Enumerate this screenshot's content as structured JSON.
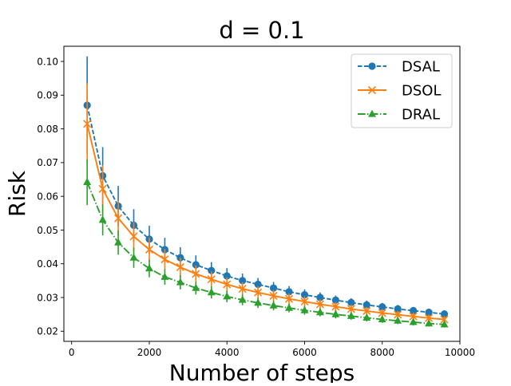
{
  "chart_data": {
    "type": "line",
    "title": "d = 0.1",
    "xlabel": "Number of steps",
    "ylabel": "Risk",
    "xlim": [
      -200,
      10000
    ],
    "ylim": [
      0.017,
      0.1045
    ],
    "xticks": [
      0,
      2000,
      4000,
      6000,
      8000,
      10000
    ],
    "xtick_labels": [
      "0",
      "2000",
      "4000",
      "6000",
      "8000",
      "10000"
    ],
    "yticks": [
      0.02,
      0.03,
      0.04,
      0.05,
      0.06,
      0.07,
      0.08,
      0.09,
      0.1
    ],
    "ytick_labels": [
      "0.02",
      "0.03",
      "0.04",
      "0.05",
      "0.06",
      "0.07",
      "0.08",
      "0.09",
      "0.10"
    ],
    "grid": false,
    "legend_position": "top-right",
    "x": [
      400,
      800,
      1200,
      1600,
      2000,
      2400,
      2800,
      3200,
      3600,
      4000,
      4400,
      4800,
      5200,
      5600,
      6000,
      6400,
      6800,
      7200,
      7600,
      8000,
      8400,
      8800,
      9200,
      9600
    ],
    "series": [
      {
        "name": "DSAL",
        "color": "#1f77b4",
        "line_style": "dashed",
        "marker": "circle",
        "values": [
          0.087,
          0.0661,
          0.0571,
          0.0514,
          0.0473,
          0.0442,
          0.0418,
          0.0397,
          0.038,
          0.0364,
          0.035,
          0.0339,
          0.0328,
          0.0317,
          0.0308,
          0.03,
          0.0292,
          0.0285,
          0.0278,
          0.0272,
          0.0266,
          0.0261,
          0.0256,
          0.0251
        ],
        "errors": [
          0.0145,
          0.0085,
          0.006,
          0.0048,
          0.004,
          0.0035,
          0.0031,
          0.0028,
          0.0025,
          0.0023,
          0.0021,
          0.0019,
          0.0018,
          0.0017,
          0.0016,
          0.0015,
          0.0014,
          0.0013,
          0.0013,
          0.0012,
          0.0012,
          0.0011,
          0.0011,
          0.0011
        ]
      },
      {
        "name": "DSOL",
        "color": "#ff7f0e",
        "line_style": "solid",
        "marker": "x",
        "values": [
          0.0815,
          0.0622,
          0.0535,
          0.0481,
          0.0442,
          0.0413,
          0.039,
          0.037,
          0.0354,
          0.0339,
          0.0326,
          0.0315,
          0.0305,
          0.0296,
          0.0288,
          0.028,
          0.0273,
          0.0266,
          0.026,
          0.0254,
          0.0249,
          0.0244,
          0.0239,
          0.0235
        ],
        "errors": [
          0.012,
          0.007,
          0.0052,
          0.0042,
          0.0036,
          0.0031,
          0.0028,
          0.0025,
          0.0023,
          0.0021,
          0.0019,
          0.0018,
          0.0017,
          0.0016,
          0.0015,
          0.0014,
          0.0013,
          0.0013,
          0.0012,
          0.0012,
          0.0011,
          0.0011,
          0.001,
          0.001
        ]
      },
      {
        "name": "DRAL",
        "color": "#2ca02c",
        "line_style": "dashdot",
        "marker": "triangle",
        "values": [
          0.0642,
          0.053,
          0.0463,
          0.0418,
          0.0386,
          0.0361,
          0.0345,
          0.0328,
          0.0315,
          0.0303,
          0.0293,
          0.0284,
          0.0276,
          0.0269,
          0.0262,
          0.0256,
          0.025,
          0.0245,
          0.024,
          0.0235,
          0.0231,
          0.0227,
          0.0223,
          0.022
        ],
        "errors": [
          0.0068,
          0.0046,
          0.0036,
          0.003,
          0.0026,
          0.0023,
          0.0021,
          0.0019,
          0.0018,
          0.0017,
          0.0016,
          0.0015,
          0.0014,
          0.0013,
          0.0013,
          0.0012,
          0.0012,
          0.0011,
          0.0011,
          0.001,
          0.001,
          0.001,
          0.0009,
          0.0009
        ]
      }
    ]
  }
}
